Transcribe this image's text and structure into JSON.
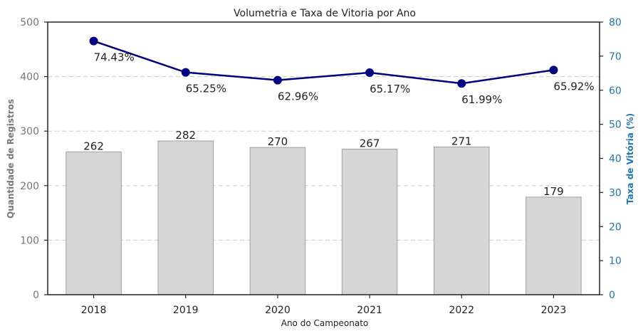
{
  "chart_data": {
    "type": "bar",
    "title": "Volumetria e Taxa de Vitoria por Ano",
    "xlabel": "Ano do Campeonato",
    "ylabel": "Quantidade de Registros",
    "y2label": "Taxa de Vitória (%)",
    "categories": [
      "2018",
      "2019",
      "2020",
      "2021",
      "2022",
      "2023"
    ],
    "ylim": [
      0,
      500
    ],
    "y2lim": [
      0,
      80
    ],
    "yticks": [
      0,
      100,
      200,
      300,
      400,
      500
    ],
    "y2ticks": [
      0,
      10,
      20,
      30,
      40,
      50,
      60,
      70,
      80
    ],
    "grid": "horizontal dashed",
    "series": [
      {
        "kind": "bar",
        "axis": "left",
        "values": [
          262,
          282,
          270,
          267,
          271,
          179
        ],
        "labels": [
          "262",
          "282",
          "270",
          "267",
          "271",
          "179"
        ],
        "color": "#d6d6d6",
        "edge_color": "#a0a0a0"
      },
      {
        "kind": "line",
        "axis": "right",
        "values": [
          74.43,
          65.25,
          62.96,
          65.17,
          61.99,
          65.92
        ],
        "labels": [
          "74.43%",
          "65.25%",
          "62.96%",
          "65.17%",
          "61.99%",
          "65.92%"
        ],
        "color": "#000080"
      }
    ],
    "colors": {
      "left_axis": "#777777",
      "right_axis": "#1f77b4",
      "grid": "#cccccc"
    }
  }
}
